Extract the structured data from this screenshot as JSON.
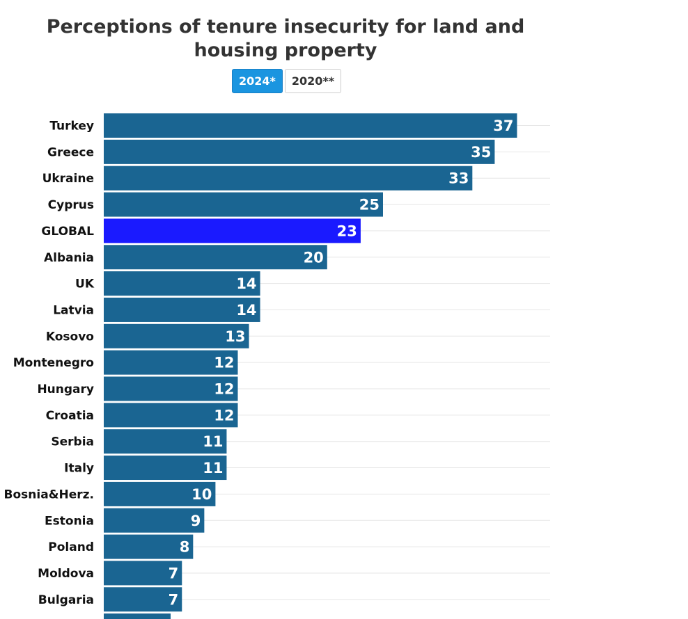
{
  "header": {
    "title": "Perceptions of tenure insecurity for land and housing property"
  },
  "toggles": [
    {
      "label": "2024*",
      "active": true
    },
    {
      "label": "2020**",
      "active": false
    }
  ],
  "colors": {
    "bar": "#1a6592",
    "highlight": "#1a1aff",
    "grid": "#e6e6e6",
    "toggle_active": "#1a95e0"
  },
  "chart_data": {
    "type": "bar",
    "orientation": "horizontal",
    "title": "Perceptions of tenure insecurity for land and housing property",
    "categories": [
      "Turkey",
      "Greece",
      "Ukraine",
      "Cyprus",
      "GLOBAL",
      "Albania",
      "UK",
      "Latvia",
      "Kosovo",
      "Montenegro",
      "Hungary",
      "Croatia",
      "Serbia",
      "Italy",
      "Bosnia&Herz.",
      "Estonia",
      "Poland",
      "Moldova",
      "Bulgaria"
    ],
    "values": [
      37,
      35,
      33,
      25,
      23,
      20,
      14,
      14,
      13,
      12,
      12,
      12,
      11,
      11,
      10,
      9,
      8,
      7,
      7
    ],
    "highlight": "GLOBAL",
    "xlim": [
      0,
      40
    ],
    "grid": true,
    "xlabel": "",
    "ylabel": ""
  }
}
